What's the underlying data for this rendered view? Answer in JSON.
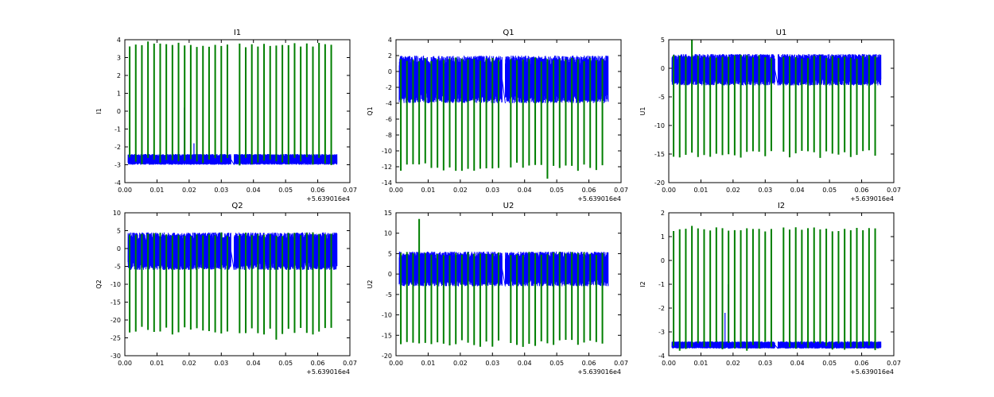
{
  "figure": {
    "colors": {
      "series_1": "#0000ff",
      "series_2": "#007f00",
      "axes": "#000000",
      "background": "#ffffff"
    }
  },
  "chart_data": [
    {
      "type": "line",
      "title": "I1",
      "ylabel": "I1",
      "xlabel": "",
      "xlim": [
        0.0,
        0.07
      ],
      "ylim": [
        -4,
        4
      ],
      "xticks": [
        "0.00",
        "0.01",
        "0.02",
        "0.03",
        "0.04",
        "0.05",
        "0.06",
        "0.07"
      ],
      "yticks": [
        "-4",
        "-3",
        "-2",
        "-1",
        "0",
        "1",
        "2",
        "3",
        "4"
      ],
      "x_offset_label": "+5.639016e4",
      "grid": false,
      "legend": "none",
      "series": [
        {
          "color": "#0000ff",
          "style": "dense-band",
          "x_segments": [
            [
              0.001,
              0.033
            ],
            [
              0.034,
              0.066
            ]
          ],
          "y_band": [
            -3.0,
            -2.4
          ],
          "spikes": [
            {
              "x": 0.0185,
              "y": 0.2
            },
            {
              "x": 0.0205,
              "y": -0.4
            },
            {
              "x": 0.0215,
              "y": -1.8
            }
          ]
        },
        {
          "color": "#007f00",
          "style": "vertical-pulses",
          "x_start": 0.0015,
          "period": 0.0019,
          "count": 34,
          "gap": [
            0.0325,
            0.035
          ],
          "y_low": -2.8,
          "y_high": 3.7,
          "y_high_max": 3.9
        }
      ]
    },
    {
      "type": "line",
      "title": "Q1",
      "ylabel": "Q1",
      "xlabel": "",
      "xlim": [
        0.0,
        0.07
      ],
      "ylim": [
        -14,
        4
      ],
      "xticks": [
        "0.00",
        "0.01",
        "0.02",
        "0.03",
        "0.04",
        "0.05",
        "0.06",
        "0.07"
      ],
      "yticks": [
        "-14",
        "-12",
        "-10",
        "-8",
        "-6",
        "-4",
        "-2",
        "0",
        "2",
        "4"
      ],
      "x_offset_label": "+5.639016e4",
      "grid": false,
      "legend": "none",
      "series": [
        {
          "color": "#0000ff",
          "style": "dense-band",
          "x_segments": [
            [
              0.001,
              0.033
            ],
            [
              0.034,
              0.066
            ]
          ],
          "y_band": [
            -4.0,
            2.0
          ],
          "spikes": []
        },
        {
          "color": "#007f00",
          "style": "vertical-pulses",
          "x_start": 0.0015,
          "period": 0.0019,
          "count": 34,
          "gap": [
            0.0325,
            0.035
          ],
          "y_low": -12.0,
          "y_high": 1.5,
          "y_low_min": -13.5
        }
      ]
    },
    {
      "type": "line",
      "title": "U1",
      "ylabel": "U1",
      "xlabel": "",
      "xlim": [
        0.0,
        0.07
      ],
      "ylim": [
        -20,
        5
      ],
      "xticks": [
        "0.00",
        "0.01",
        "0.02",
        "0.03",
        "0.04",
        "0.05",
        "0.06",
        "0.07"
      ],
      "yticks": [
        "-20",
        "-15",
        "-10",
        "-5",
        "0",
        "5"
      ],
      "x_offset_label": "+5.639016e4",
      "grid": false,
      "legend": "none",
      "series": [
        {
          "color": "#0000ff",
          "style": "dense-band",
          "x_segments": [
            [
              0.001,
              0.033
            ],
            [
              0.034,
              0.066
            ]
          ],
          "y_band": [
            -3.0,
            2.5
          ],
          "spikes": []
        },
        {
          "color": "#007f00",
          "style": "vertical-pulses",
          "x_start": 0.0015,
          "period": 0.0019,
          "count": 34,
          "gap": [
            0.0325,
            0.035
          ],
          "y_low": -15.0,
          "y_high": 2.0,
          "y_high_max": 5.0
        }
      ]
    },
    {
      "type": "line",
      "title": "Q2",
      "ylabel": "Q2",
      "xlabel": "",
      "xlim": [
        0.0,
        0.07
      ],
      "ylim": [
        -30,
        10
      ],
      "xticks": [
        "0.00",
        "0.01",
        "0.02",
        "0.03",
        "0.04",
        "0.05",
        "0.06",
        "0.07"
      ],
      "yticks": [
        "-30",
        "-25",
        "-20",
        "-15",
        "-10",
        "-5",
        "0",
        "5",
        "10"
      ],
      "x_offset_label": "+5.639016e4",
      "grid": false,
      "legend": "none",
      "series": [
        {
          "color": "#0000ff",
          "style": "dense-band",
          "x_segments": [
            [
              0.001,
              0.033
            ],
            [
              0.034,
              0.066
            ]
          ],
          "y_band": [
            -6.0,
            4.5
          ],
          "spikes": []
        },
        {
          "color": "#007f00",
          "style": "vertical-pulses",
          "x_start": 0.0015,
          "period": 0.0019,
          "count": 34,
          "gap": [
            0.0325,
            0.035
          ],
          "y_low": -23.0,
          "y_high": 4.0,
          "y_low_min": -25.5
        }
      ]
    },
    {
      "type": "line",
      "title": "U2",
      "ylabel": "U2",
      "xlabel": "",
      "xlim": [
        0.0,
        0.07
      ],
      "ylim": [
        -20,
        15
      ],
      "xticks": [
        "0.00",
        "0.01",
        "0.02",
        "0.03",
        "0.04",
        "0.05",
        "0.06",
        "0.07"
      ],
      "yticks": [
        "-20",
        "-15",
        "-10",
        "-5",
        "0",
        "5",
        "10",
        "15"
      ],
      "x_offset_label": "+5.639016e4",
      "grid": false,
      "legend": "none",
      "series": [
        {
          "color": "#0000ff",
          "style": "dense-band",
          "x_segments": [
            [
              0.001,
              0.033
            ],
            [
              0.034,
              0.066
            ]
          ],
          "y_band": [
            -3.0,
            5.5
          ],
          "spikes": []
        },
        {
          "color": "#007f00",
          "style": "vertical-pulses",
          "x_start": 0.0015,
          "period": 0.0019,
          "count": 34,
          "gap": [
            0.0325,
            0.035
          ],
          "y_low": -17.0,
          "y_high": 5.0,
          "y_high_max": 13.5
        }
      ]
    },
    {
      "type": "line",
      "title": "I2",
      "ylabel": "I2",
      "xlabel": "",
      "xlim": [
        0.0,
        0.07
      ],
      "ylim": [
        -4,
        2
      ],
      "xticks": [
        "0.00",
        "0.01",
        "0.02",
        "0.03",
        "0.04",
        "0.05",
        "0.06",
        "0.07"
      ],
      "yticks": [
        "-4",
        "-3",
        "-2",
        "-1",
        "0",
        "1",
        "2"
      ],
      "x_offset_label": "+5.639016e4",
      "grid": false,
      "legend": "none",
      "series": [
        {
          "color": "#0000ff",
          "style": "dense-band",
          "x_segments": [
            [
              0.001,
              0.033
            ],
            [
              0.034,
              0.066
            ]
          ],
          "y_band": [
            -3.7,
            -3.4
          ],
          "spikes": [
            {
              "x": 0.0185,
              "y": -1.0
            },
            {
              "x": 0.0175,
              "y": -2.2
            },
            {
              "x": 0.0205,
              "y": -2.4
            }
          ]
        },
        {
          "color": "#007f00",
          "style": "vertical-pulses",
          "x_start": 0.0015,
          "period": 0.0019,
          "count": 34,
          "gap": [
            0.0325,
            0.035
          ],
          "y_low": -3.6,
          "y_high": 1.3,
          "y_high_max": 1.45
        }
      ]
    }
  ]
}
